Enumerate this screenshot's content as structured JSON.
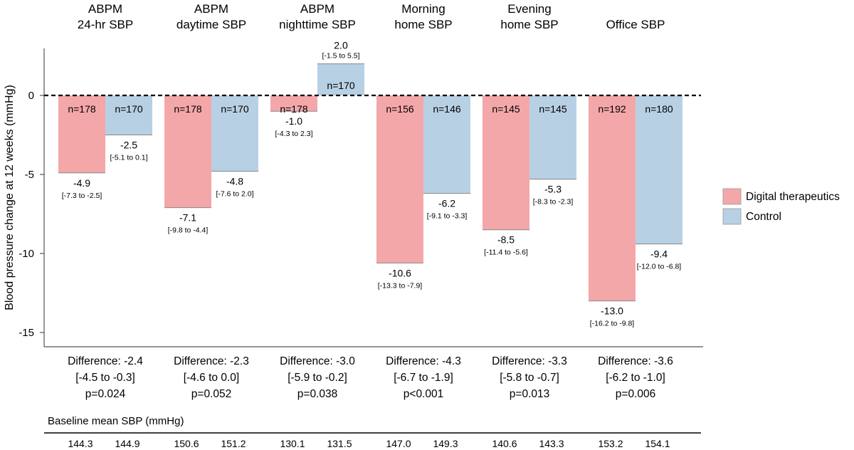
{
  "chart_data": {
    "type": "bar",
    "ylabel": "Blood pressure change at 12 weeks (mmHg)",
    "ylim": [
      -16,
      3
    ],
    "yticks": [
      0,
      -5,
      -10,
      -15
    ],
    "colors": {
      "digital": "#f4a7a9",
      "control": "#b8d0e4"
    },
    "legend": {
      "position": "right",
      "items": [
        {
          "key": "digital",
          "label": "Digital therapeutics"
        },
        {
          "key": "control",
          "label": "Control"
        }
      ]
    },
    "baseline_title": "Baseline mean SBP (mmHg)",
    "groups": [
      {
        "title": [
          "ABPM",
          "24-hr SBP"
        ],
        "bars": [
          {
            "key": "digital",
            "value": -4.9,
            "label": "-4.9",
            "ci": "[-7.3 to -2.5]",
            "n": "n=178",
            "baseline": "144.3"
          },
          {
            "key": "control",
            "value": -2.5,
            "label": "-2.5",
            "ci": "[-5.1 to 0.1]",
            "n": "n=170",
            "baseline": "144.9"
          }
        ],
        "difference": [
          "Difference: -2.4",
          "[-4.5 to -0.3]",
          "p=0.024"
        ]
      },
      {
        "title": [
          "ABPM",
          "daytime SBP"
        ],
        "bars": [
          {
            "key": "digital",
            "value": -7.1,
            "label": "-7.1",
            "ci": "[-9.8 to -4.4]",
            "n": "n=178",
            "baseline": "150.6"
          },
          {
            "key": "control",
            "value": -4.8,
            "label": "-4.8",
            "ci": "[-7.6 to 2.0]",
            "n": "n=170",
            "baseline": "151.2"
          }
        ],
        "difference": [
          "Difference: -2.3",
          "[-4.6 to 0.0]",
          "p=0.052"
        ]
      },
      {
        "title": [
          "ABPM",
          "nighttime SBP"
        ],
        "bars": [
          {
            "key": "digital",
            "value": -1.0,
            "label": "-1.0",
            "ci": "[-4.3 to 2.3]",
            "n": "n=178",
            "baseline": "130.1"
          },
          {
            "key": "control",
            "value": 2.0,
            "label": "2.0",
            "ci": "[-1.5 to 5.5]",
            "n": "n=170",
            "baseline": "131.5"
          }
        ],
        "difference": [
          "Difference: -3.0",
          "[-5.9 to -0.2]",
          "p=0.038"
        ]
      },
      {
        "title": [
          "Morning",
          "home SBP"
        ],
        "bars": [
          {
            "key": "digital",
            "value": -10.6,
            "label": "-10.6",
            "ci": "[-13.3 to -7.9]",
            "n": "n=156",
            "baseline": "147.0"
          },
          {
            "key": "control",
            "value": -6.2,
            "label": "-6.2",
            "ci": "[-9.1 to -3.3]",
            "n": "n=146",
            "baseline": "149.3"
          }
        ],
        "difference": [
          "Difference: -4.3",
          "[-6.7 to -1.9]",
          "p<0.001"
        ]
      },
      {
        "title": [
          "Evening",
          "home SBP"
        ],
        "bars": [
          {
            "key": "digital",
            "value": -8.5,
            "label": "-8.5",
            "ci": "[-11.4 to -5.6]",
            "n": "n=145",
            "baseline": "140.6"
          },
          {
            "key": "control",
            "value": -5.3,
            "label": "-5.3",
            "ci": "[-8.3 to -2.3]",
            "n": "n=145",
            "baseline": "143.3"
          }
        ],
        "difference": [
          "Difference: -3.3",
          "[-5.8 to -0.7]",
          "p=0.013"
        ]
      },
      {
        "title": [
          "Office SBP"
        ],
        "bars": [
          {
            "key": "digital",
            "value": -13.0,
            "label": "-13.0",
            "ci": "[-16.2 to -9.8]",
            "n": "n=192",
            "baseline": "153.2"
          },
          {
            "key": "control",
            "value": -9.4,
            "label": "-9.4",
            "ci": "[-12.0 to -6.8]",
            "n": "n=180",
            "baseline": "154.1"
          }
        ],
        "difference": [
          "Difference: -3.6",
          "[-6.2 to -1.0]",
          "p=0.006"
        ]
      }
    ]
  }
}
